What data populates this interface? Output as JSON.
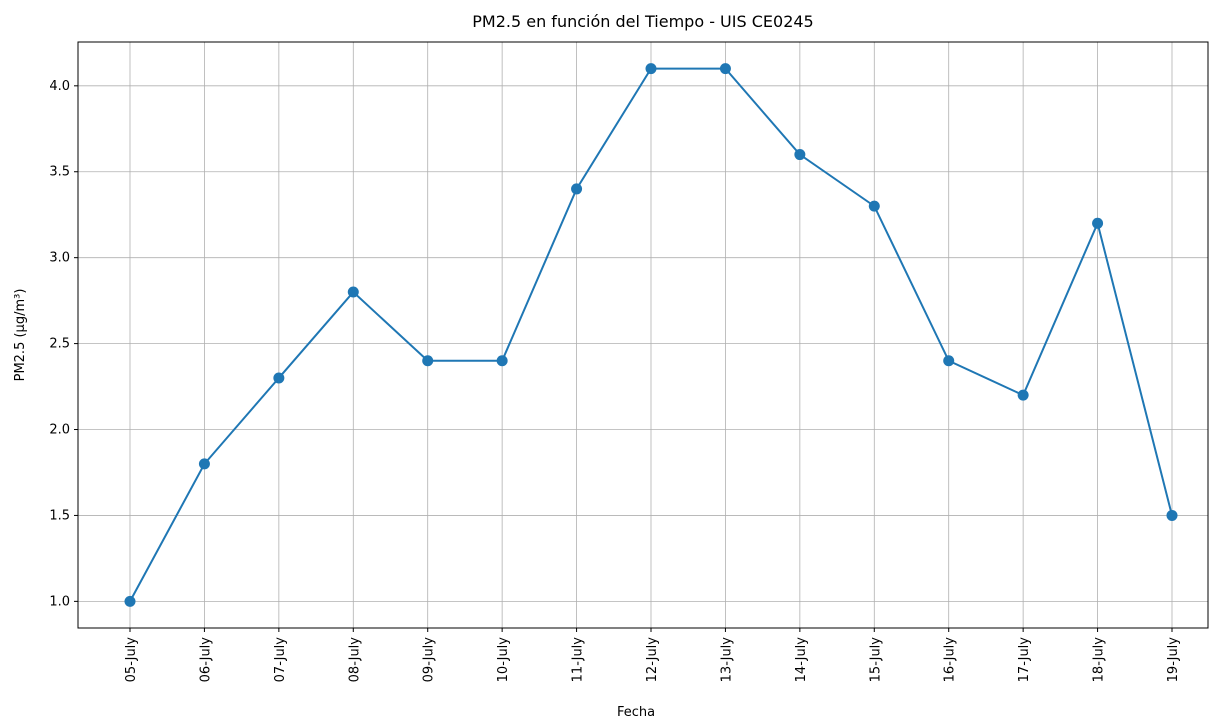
{
  "chart_data": {
    "type": "line",
    "title": "PM2.5 en función del Tiempo - UIS CE0245",
    "x_label": "Fecha",
    "y_label": "PM2.5 (µg/m³)",
    "categories": [
      "05-July",
      "06-July",
      "07-July",
      "08-July",
      "09-July",
      "10-July",
      "11-July",
      "12-July",
      "13-July",
      "14-July",
      "15-July",
      "16-July",
      "17-July",
      "18-July",
      "19-July"
    ],
    "series": [
      {
        "name": "PM2.5",
        "color": "#1f77b4",
        "values": [
          1.0,
          1.8,
          2.3,
          2.8,
          2.4,
          2.4,
          3.4,
          4.1,
          4.1,
          3.6,
          3.3,
          2.4,
          2.2,
          3.2,
          1.5
        ]
      }
    ],
    "ylim": [
      0.845,
      4.255
    ],
    "yticks": [
      {
        "value": 1.0,
        "label": "1.0"
      },
      1.5,
      {
        "value": 2.0,
        "label": "2.0"
      },
      2.5,
      {
        "value": 3.0,
        "label": "3.0"
      },
      3.5,
      {
        "value": 4.0,
        "label": "4.0"
      }
    ],
    "grid": true
  }
}
